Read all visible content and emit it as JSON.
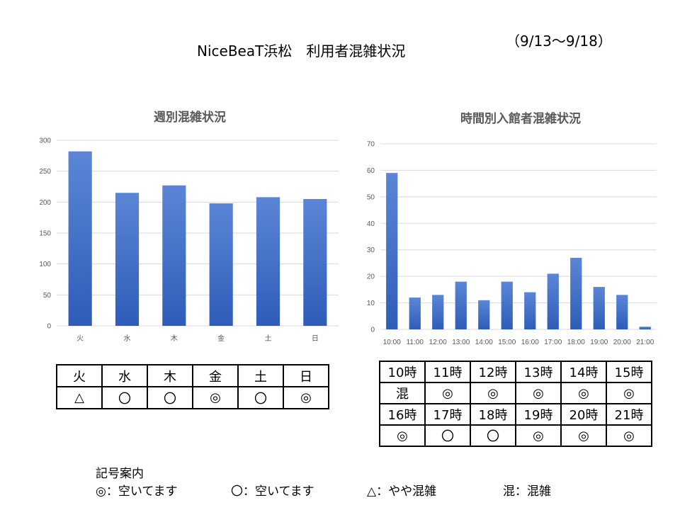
{
  "header": {
    "title": "NiceBeaT浜松　利用者混雑状況",
    "period": "（9/13～9/18）"
  },
  "chart_data": [
    {
      "type": "bar",
      "title": "週別混雑状況",
      "categories": [
        "火",
        "水",
        "木",
        "金",
        "土",
        "日"
      ],
      "values": [
        282,
        215,
        227,
        198,
        208,
        205
      ],
      "ylim": [
        0,
        300
      ],
      "yticks": [
        0,
        50,
        100,
        150,
        200,
        250,
        300
      ],
      "grid": true,
      "legend": "none",
      "bar_color": "#4472c4"
    },
    {
      "type": "bar",
      "title": "時間別入館者混雑状況",
      "categories": [
        "10:00",
        "11:00",
        "12:00",
        "13:00",
        "14:00",
        "15:00",
        "16:00",
        "17:00",
        "18:00",
        "19:00",
        "20:00",
        "21:00"
      ],
      "values": [
        59,
        12,
        13,
        18,
        11,
        18,
        14,
        21,
        27,
        16,
        13,
        1
      ],
      "ylim": [
        0,
        70
      ],
      "yticks": [
        0,
        10,
        20,
        30,
        40,
        50,
        60,
        70
      ],
      "grid": true,
      "legend": "none",
      "bar_color": "#4472c4"
    }
  ],
  "week_table": {
    "days": [
      "火",
      "水",
      "木",
      "金",
      "土",
      "日"
    ],
    "status": [
      "△",
      "〇",
      "〇",
      "◎",
      "〇",
      "◎"
    ]
  },
  "hour_table": {
    "row1_hours": [
      "10時",
      "11時",
      "12時",
      "13時",
      "14時",
      "15時"
    ],
    "row1_status": [
      "混",
      "◎",
      "◎",
      "◎",
      "◎",
      "◎"
    ],
    "row2_hours": [
      "16時",
      "17時",
      "18時",
      "19時",
      "20時",
      "21時"
    ],
    "row2_status": [
      "◎",
      "〇",
      "〇",
      "◎",
      "◎",
      "◎"
    ]
  },
  "legend": {
    "title": "記号案内",
    "items": [
      "◎：空いてます",
      "〇：空いてます",
      "△：やや混雑",
      "混：混雑"
    ]
  }
}
